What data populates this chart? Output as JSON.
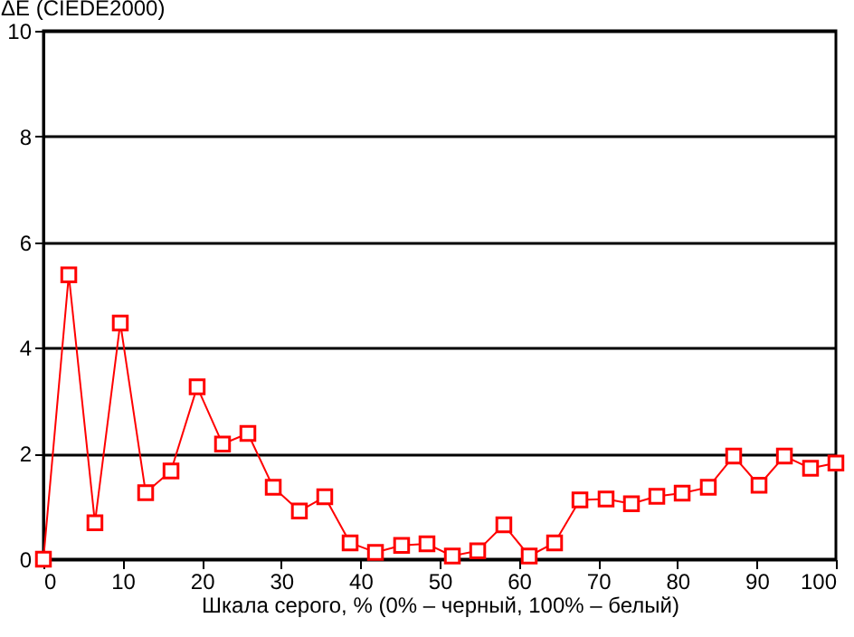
{
  "chart_data": {
    "type": "line",
    "ylabel": "ΔE (CIEDE2000)",
    "xlabel": "Шкала серого, % (0% – черный, 100% – белый)",
    "x": [
      0,
      3.2,
      6.5,
      9.7,
      12.9,
      16.1,
      19.4,
      22.6,
      25.8,
      29.0,
      32.3,
      35.5,
      38.7,
      41.9,
      45.2,
      48.4,
      51.6,
      54.8,
      58.1,
      61.3,
      64.5,
      67.7,
      71.0,
      74.2,
      77.4,
      80.6,
      83.9,
      87.1,
      90.3,
      93.5,
      96.8,
      100
    ],
    "series": [
      {
        "color": "#ff0000",
        "values": [
          0,
          5.38,
          0.69,
          4.47,
          1.26,
          1.67,
          3.26,
          2.18,
          2.38,
          1.36,
          0.91,
          1.18,
          0.31,
          0.13,
          0.26,
          0.29,
          0.06,
          0.16,
          0.65,
          0.06,
          0.31,
          1.12,
          1.14,
          1.05,
          1.19,
          1.25,
          1.36,
          1.95,
          1.4,
          1.95,
          1.72,
          1.82
        ]
      }
    ],
    "xlim": [
      0,
      100
    ],
    "ylim": [
      0,
      10
    ],
    "xticks": [
      0,
      10,
      20,
      30,
      40,
      50,
      60,
      70,
      80,
      90,
      100
    ],
    "yticks": [
      0,
      2,
      4,
      6,
      8,
      10
    ],
    "grid": "y",
    "marker": "square",
    "line_style": "solid"
  }
}
